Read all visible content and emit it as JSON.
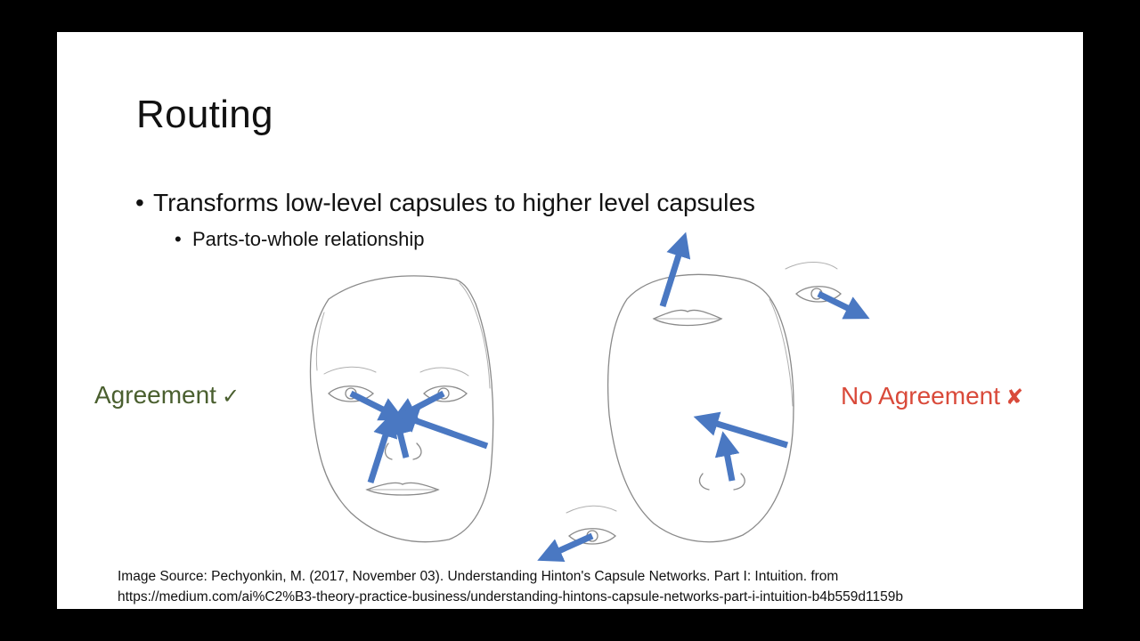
{
  "slide": {
    "title": "Routing",
    "bullets": [
      "Transforms low-level capsules to higher level capsules",
      "Parts-to-whole relationship"
    ],
    "bullet_glyph": "•"
  },
  "diagram": {
    "agreement_label": "Agreement",
    "agreement_mark": "✓",
    "no_agreement_label": "No Agreement",
    "no_agreement_mark": "✘",
    "colors": {
      "agreement": "#4a5f2f",
      "no_agreement": "#d94a3a",
      "arrow": "#4a78c2"
    },
    "icons": [
      "face-sketch-icon",
      "eye-sketch-icon",
      "nose-sketch-icon",
      "mouth-sketch-icon",
      "arrow-icon"
    ]
  },
  "source": {
    "line1": "Image Source: Pechyonkin, M. (2017, November 03). Understanding Hinton's Capsule Networks. Part I: Intuition. from",
    "line2": "https://medium.com/ai%C2%B3-theory-practice-business/understanding-hintons-capsule-networks-part-i-intuition-b4b559d1159b"
  }
}
